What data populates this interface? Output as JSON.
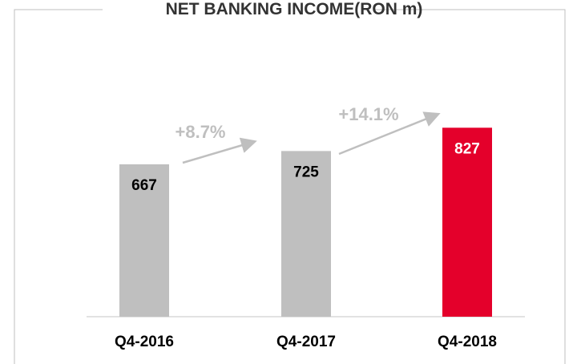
{
  "chart_data": {
    "type": "bar",
    "title": "NET BANKING INCOME(RON m)",
    "categories": [
      "Q4-2016",
      "Q4-2017",
      "Q4-2018"
    ],
    "values": [
      667,
      725,
      827
    ],
    "colors": [
      "#bfbfbf",
      "#bfbfbf",
      "#e4002b"
    ],
    "value_label_colors": [
      "#000000",
      "#000000",
      "#ffffff"
    ],
    "ylim": [
      0,
      1000
    ],
    "annotations": [
      "+8.7%",
      "+14.1%"
    ]
  }
}
